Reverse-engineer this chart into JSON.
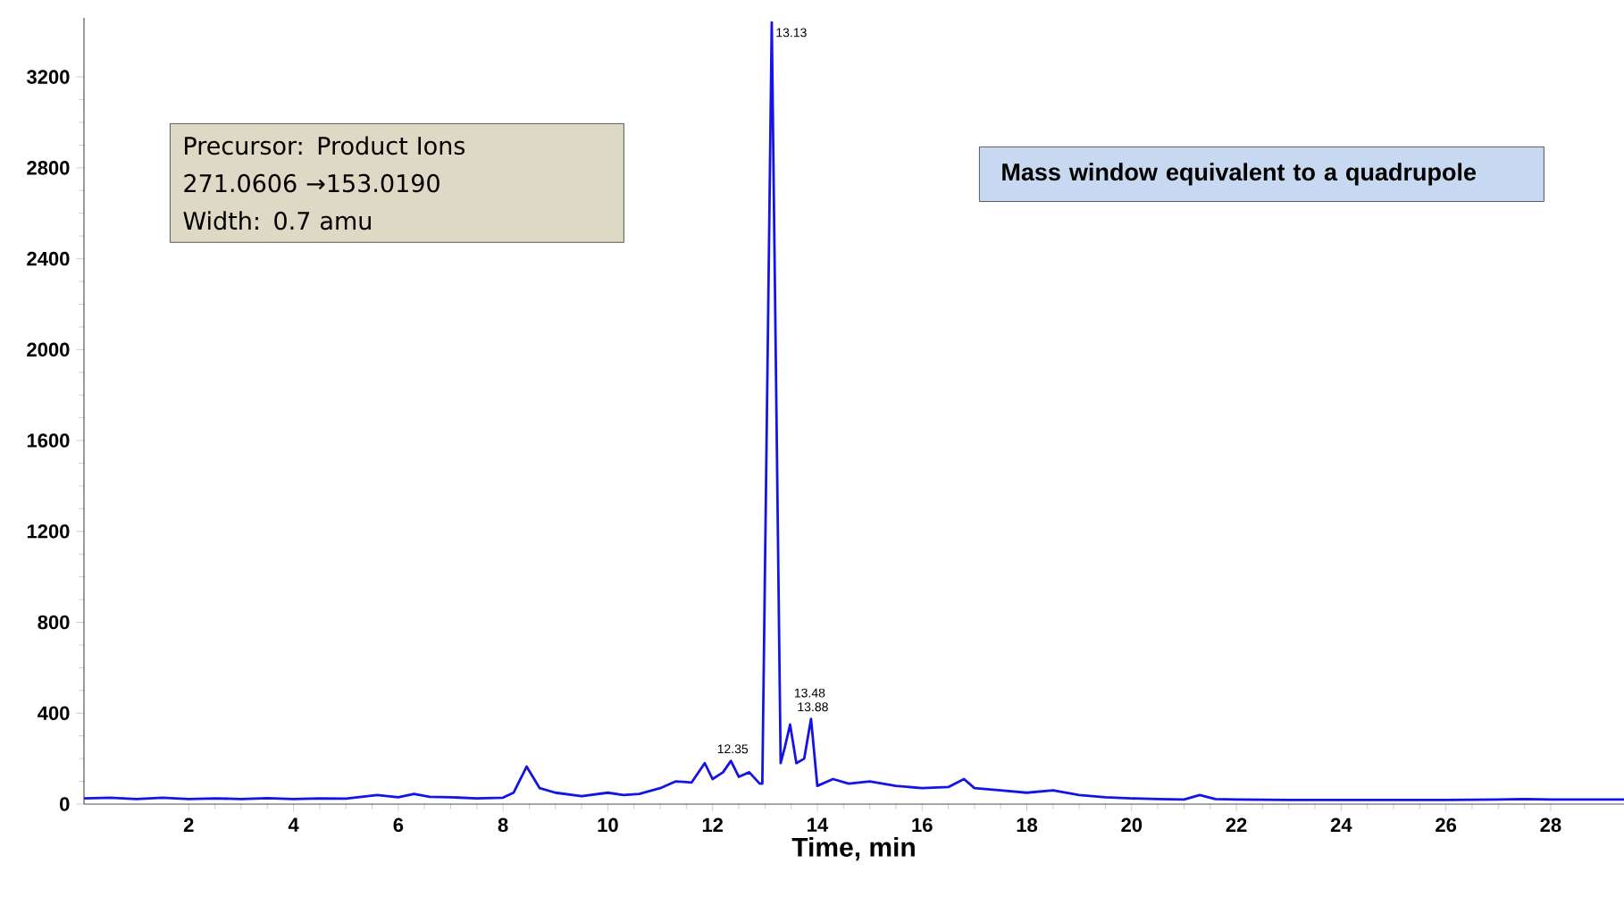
{
  "chart_data": {
    "type": "line",
    "xlabel": "Time, min",
    "x": [
      0,
      0.5,
      1,
      1.5,
      2,
      2.5,
      3,
      3.5,
      4,
      4.5,
      5,
      5.6,
      6,
      6.3,
      6.6,
      7,
      7.5,
      8,
      8.2,
      8.45,
      8.7,
      9,
      9.5,
      10,
      10.3,
      10.6,
      11,
      11.3,
      11.6,
      11.85,
      12.0,
      12.2,
      12.35,
      12.5,
      12.7,
      12.9,
      12.95,
      13.13,
      13.3,
      13.38,
      13.48,
      13.6,
      13.75,
      13.88,
      14.0,
      14.3,
      14.6,
      15,
      15.5,
      16,
      16.5,
      16.8,
      17,
      17.5,
      18,
      18.5,
      19,
      19.5,
      20,
      20.5,
      21,
      21.3,
      21.6,
      22,
      23,
      24,
      25,
      26,
      27,
      27.5,
      28,
      29.4
    ],
    "series": [
      {
        "color": "#1414e6",
        "values": [
          25,
          28,
          22,
          28,
          22,
          25,
          22,
          26,
          22,
          25,
          24,
          40,
          30,
          45,
          32,
          30,
          25,
          28,
          50,
          165,
          70,
          50,
          35,
          50,
          40,
          45,
          70,
          100,
          95,
          180,
          110,
          140,
          190,
          120,
          140,
          90,
          90,
          3440,
          180,
          250,
          350,
          180,
          200,
          375,
          80,
          110,
          90,
          100,
          80,
          70,
          75,
          110,
          70,
          60,
          50,
          60,
          40,
          30,
          25,
          22,
          20,
          40,
          22,
          20,
          18,
          18,
          18,
          18,
          20,
          22,
          20,
          20
        ]
      }
    ],
    "xlim": [
      0,
      29.4
    ],
    "ylim": [
      0,
      3460
    ],
    "xticks": [
      2,
      4,
      6,
      8,
      10,
      12,
      14,
      16,
      18,
      20,
      22,
      24,
      26,
      28
    ],
    "yticks": [
      0,
      400,
      800,
      1200,
      1600,
      2000,
      2400,
      2800,
      3200
    ],
    "annotations": [
      {
        "text": "13.13",
        "x": 13.13,
        "y": 3440
      },
      {
        "text": "12.35",
        "x": 12.35,
        "y": 190
      },
      {
        "text": "13.48",
        "x": 13.48,
        "y": 350
      },
      {
        "text": "13.88",
        "x": 13.88,
        "y": 375
      },
      "Precursor: Product Ions",
      "271.0606 →153.0190",
      "Width:  0.7 amu",
      "**Mass window equivalent to a quadrupole**"
    ]
  }
}
